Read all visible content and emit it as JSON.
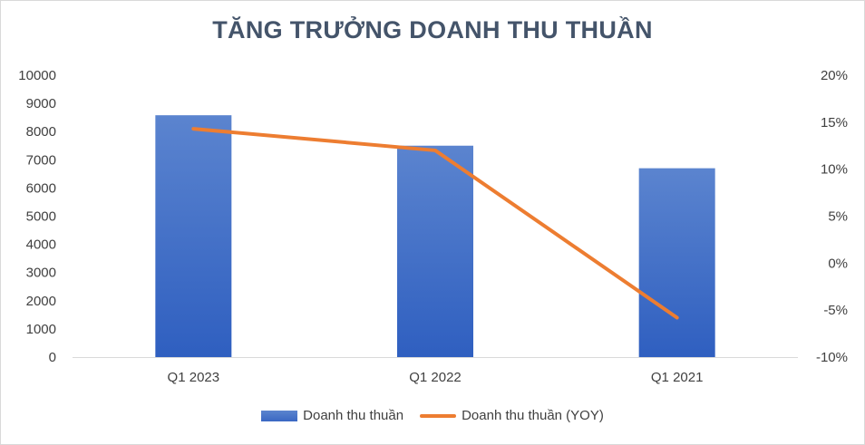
{
  "chart_data": {
    "type": "bar",
    "title": "TĂNG TRƯỞNG DOANH THU THUẦN",
    "categories": [
      "Q1 2023",
      "Q1 2022",
      "Q1 2021"
    ],
    "series": [
      {
        "name": "Doanh thu thuần",
        "type": "bar",
        "axis": "left",
        "values": [
          8580,
          7500,
          6700
        ]
      },
      {
        "name": "Doanh thu thuần (YOY)",
        "type": "line",
        "axis": "right",
        "values": [
          14.3,
          12.0,
          -5.8
        ]
      }
    ],
    "ylim_left": [
      0,
      10000
    ],
    "yticks_left": [
      "10000",
      "9000",
      "8000",
      "7000",
      "6000",
      "5000",
      "4000",
      "3000",
      "2000",
      "1000",
      "0"
    ],
    "ylim_right": [
      -10,
      20
    ],
    "yticks_right": [
      "20%",
      "15%",
      "10%",
      "5%",
      "0%",
      "-5%",
      "-10%"
    ],
    "colors": {
      "bar": "#4472c4",
      "line": "#ed7d31",
      "title": "#44546a",
      "axis": "#d9d9d9"
    },
    "grid": false,
    "legend_position": "bottom"
  }
}
